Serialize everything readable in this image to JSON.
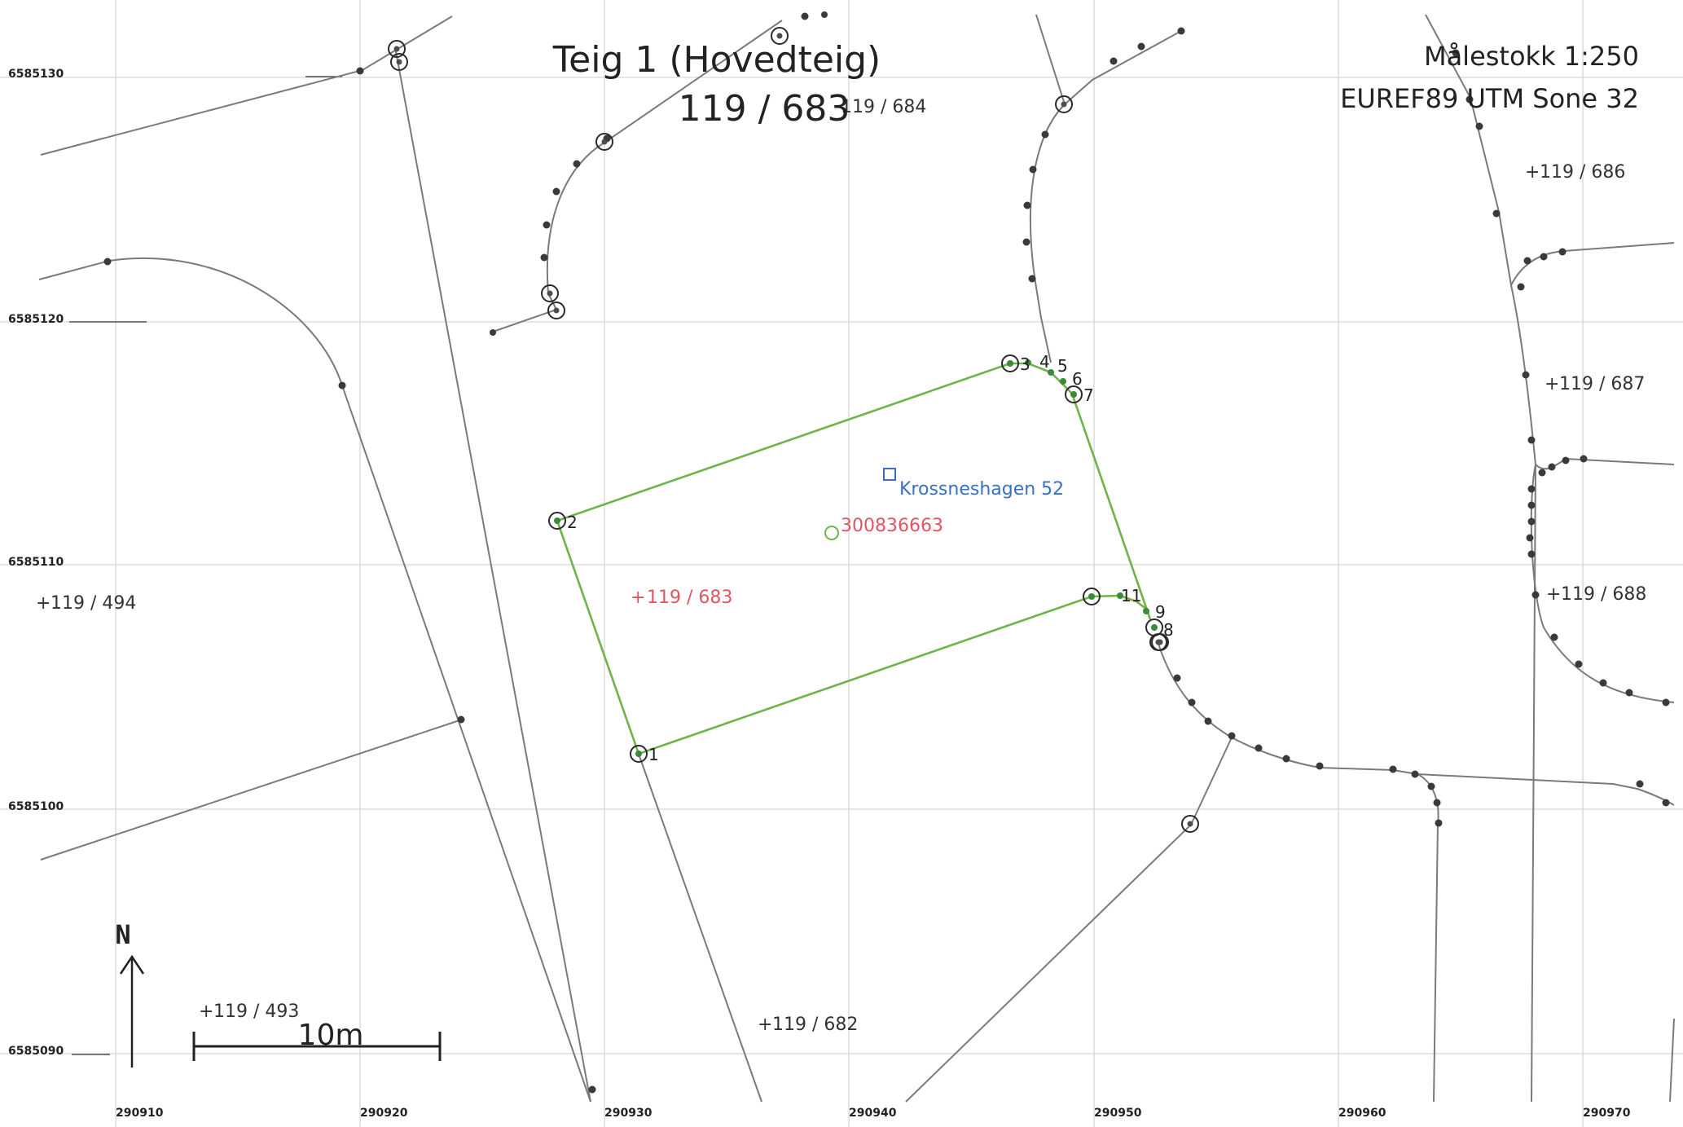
{
  "title": "Teig 1 (Hovedteig)",
  "subtitle": "119 / 683",
  "scale_text": "Målestokk 1:250",
  "crs_text": "EUREF89 UTM Sone 32",
  "north_label": "N",
  "scalebar_label": "10m",
  "northing_labels": [
    "6585130",
    "6585120",
    "6585110",
    "6585100",
    "6585090"
  ],
  "easting_labels": [
    "290910",
    "290920",
    "290930",
    "290940",
    "290950",
    "290960",
    "290970"
  ],
  "parcels": {
    "p684": "119 / 684",
    "p686": "119 / 686",
    "p687": "119 / 687",
    "p688": "119 / 688",
    "p494": "119 / 494",
    "p493": "119 / 493",
    "p682": "119 / 682",
    "p683": "119 / 683"
  },
  "address_label": "Krossneshagen 52",
  "building_id": "300836663",
  "point_numbers": [
    "1",
    "2",
    "3",
    "4",
    "5",
    "6",
    "7",
    "8",
    "9",
    "11"
  ],
  "colors": {
    "parcel_boundary": "#6fb34a",
    "main_parcel_label": "#e05561",
    "address": "#3a6fc4",
    "grid": "#d6d6d6",
    "lines": "#7a7a7a"
  }
}
